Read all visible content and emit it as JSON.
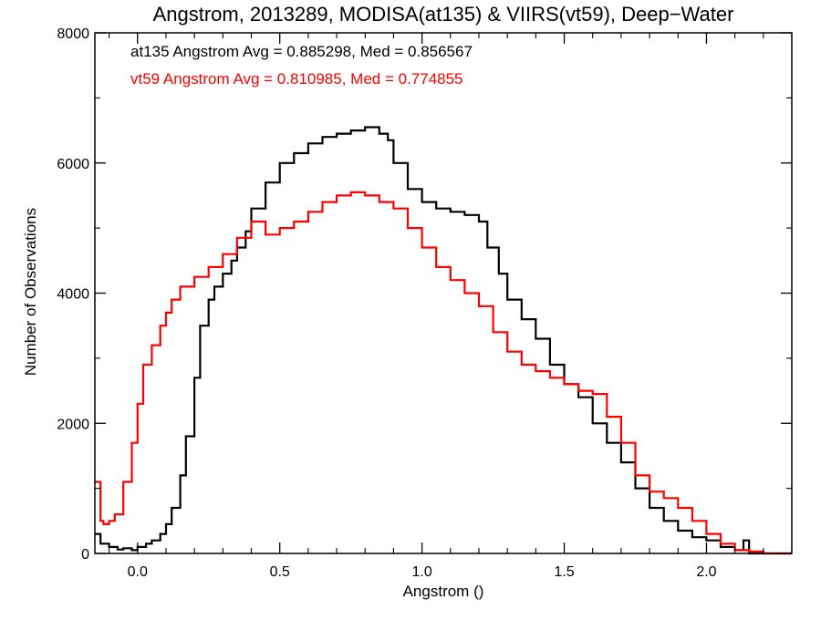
{
  "chart_data": {
    "type": "line",
    "title": "Angstrom, 2013289, MODISA(at135) & VIIRS(vt59), Deep−Water",
    "xlabel": "Angstrom ()",
    "ylabel": "Number of Observations",
    "xlim": [
      -0.15,
      2.3
    ],
    "ylim": [
      0,
      8000
    ],
    "x_ticks": [
      0.0,
      0.5,
      1.0,
      1.5,
      2.0
    ],
    "x_tick_labels": [
      "0.0",
      "0.5",
      "1.0",
      "1.5",
      "2.0"
    ],
    "y_ticks": [
      0,
      2000,
      4000,
      6000,
      8000
    ],
    "y_tick_labels": [
      "0",
      "2000",
      "4000",
      "6000",
      "8000"
    ],
    "grid": false,
    "step": true,
    "annotations": [
      {
        "text": "at135 Angstrom Avg = 0.885298, Med = 0.856567",
        "color": "#000000"
      },
      {
        "text": "vt59 Angstrom Avg = 0.810985, Med = 0.774855",
        "color": "#ff0000"
      }
    ],
    "series": [
      {
        "color": "#000000",
        "x": [
          -0.15,
          -0.13,
          -0.1,
          -0.07,
          -0.05,
          -0.02,
          0.0,
          0.03,
          0.05,
          0.08,
          0.1,
          0.12,
          0.15,
          0.17,
          0.2,
          0.22,
          0.25,
          0.27,
          0.3,
          0.33,
          0.35,
          0.38,
          0.4,
          0.45,
          0.5,
          0.55,
          0.6,
          0.65,
          0.7,
          0.75,
          0.8,
          0.85,
          0.88,
          0.9,
          0.95,
          1.0,
          1.05,
          1.1,
          1.15,
          1.2,
          1.23,
          1.27,
          1.3,
          1.35,
          1.4,
          1.45,
          1.5,
          1.55,
          1.6,
          1.65,
          1.7,
          1.75,
          1.8,
          1.85,
          1.9,
          1.95,
          2.0,
          2.05,
          2.1,
          2.13,
          2.15,
          2.17,
          2.2,
          2.3
        ],
        "values": [
          300,
          150,
          100,
          60,
          80,
          50,
          100,
          150,
          200,
          300,
          450,
          700,
          1200,
          1800,
          2700,
          3500,
          3900,
          4100,
          4300,
          4500,
          4700,
          4950,
          5300,
          5700,
          6000,
          6150,
          6300,
          6400,
          6450,
          6500,
          6550,
          6450,
          6350,
          6000,
          5600,
          5400,
          5300,
          5250,
          5200,
          5100,
          4700,
          4300,
          3900,
          3600,
          3300,
          2900,
          2600,
          2400,
          2000,
          1700,
          1400,
          1000,
          700,
          500,
          350,
          250,
          200,
          100,
          50,
          200,
          0,
          0,
          0,
          0
        ]
      },
      {
        "color": "#ff0000",
        "x": [
          -0.15,
          -0.13,
          -0.12,
          -0.1,
          -0.08,
          -0.05,
          -0.02,
          0.0,
          0.02,
          0.05,
          0.08,
          0.1,
          0.12,
          0.15,
          0.2,
          0.25,
          0.3,
          0.35,
          0.4,
          0.45,
          0.5,
          0.55,
          0.6,
          0.65,
          0.7,
          0.75,
          0.8,
          0.85,
          0.9,
          0.95,
          1.0,
          1.05,
          1.1,
          1.15,
          1.2,
          1.25,
          1.3,
          1.35,
          1.4,
          1.45,
          1.5,
          1.55,
          1.6,
          1.65,
          1.7,
          1.75,
          1.8,
          1.85,
          1.9,
          1.95,
          2.0,
          2.05,
          2.1,
          2.15,
          2.2,
          2.3
        ],
        "values": [
          1100,
          500,
          450,
          500,
          600,
          1100,
          1700,
          2300,
          2900,
          3200,
          3500,
          3700,
          3900,
          4100,
          4250,
          4400,
          4600,
          4850,
          5100,
          4900,
          5000,
          5100,
          5250,
          5400,
          5500,
          5550,
          5500,
          5400,
          5300,
          5000,
          4700,
          4400,
          4200,
          4000,
          3800,
          3400,
          3100,
          2900,
          2800,
          2700,
          2600,
          2500,
          2450,
          2100,
          1700,
          1200,
          950,
          850,
          700,
          500,
          300,
          150,
          50,
          30,
          0,
          0
        ]
      }
    ]
  }
}
